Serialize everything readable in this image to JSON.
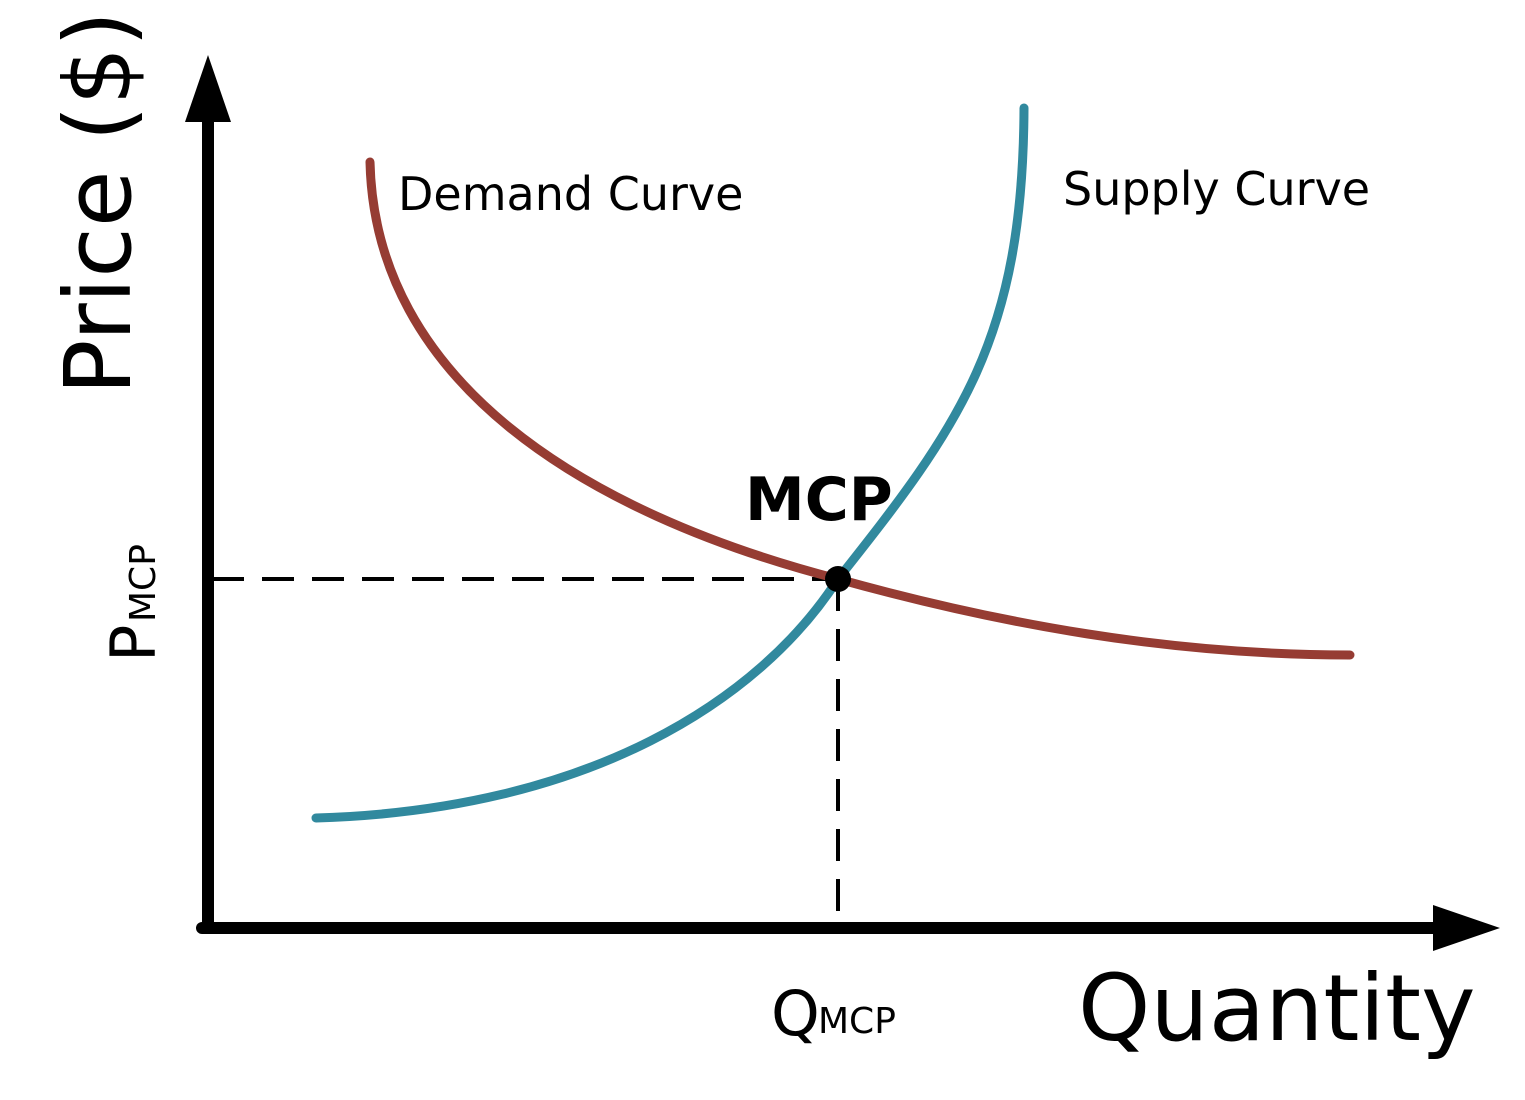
{
  "axes": {
    "x_title": "Quantity",
    "y_title": "Price ($)"
  },
  "curves": {
    "demand_label": "Demand Curve",
    "supply_label": "Supply Curve",
    "demand_color": "#963C33",
    "supply_color": "#31899E"
  },
  "equilibrium": {
    "label": "MCP",
    "price_main": "P",
    "price_sub": "MCP",
    "quantity_main": "Q",
    "quantity_sub": "MCP"
  },
  "colors": {
    "axis": "#000000",
    "guide": "#000000"
  }
}
